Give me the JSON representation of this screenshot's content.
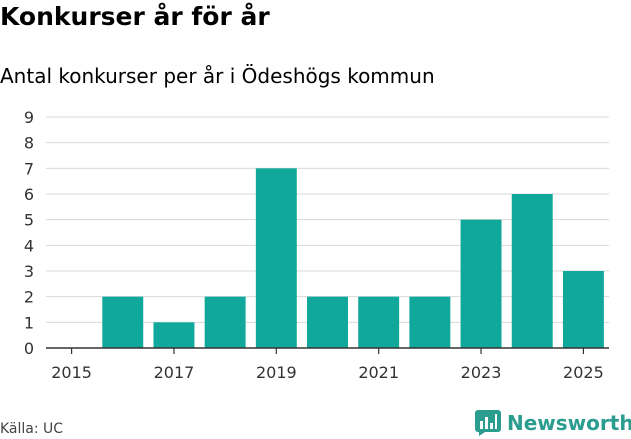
{
  "title": "Konkurser år för år",
  "subtitle": "Antal konkurser per år i Ödeshögs kommun",
  "source": "Källa: UC",
  "brand": "Newsworthy",
  "colors": {
    "bar": "#10a89b",
    "grid": "#d9d9d9",
    "axis": "#333333",
    "brand": "#2a9d8f"
  },
  "chart_data": {
    "type": "bar",
    "title": "Konkurser år för år",
    "subtitle": "Antal konkurser per år i Ödeshögs kommun",
    "xlabel": "",
    "ylabel": "",
    "categories": [
      "2015",
      "2016",
      "2017",
      "2018",
      "2019",
      "2020",
      "2021",
      "2022",
      "2023",
      "2024",
      "2025"
    ],
    "values": [
      0,
      2,
      1,
      2,
      7,
      2,
      2,
      2,
      5,
      6,
      3
    ],
    "x_tick_labels": [
      "2015",
      "2017",
      "2019",
      "2021",
      "2023",
      "2025"
    ],
    "y_ticks": [
      0,
      1,
      2,
      3,
      4,
      5,
      6,
      7,
      8,
      9
    ],
    "ylim": [
      0,
      9
    ],
    "grid": true,
    "legend": "none"
  }
}
